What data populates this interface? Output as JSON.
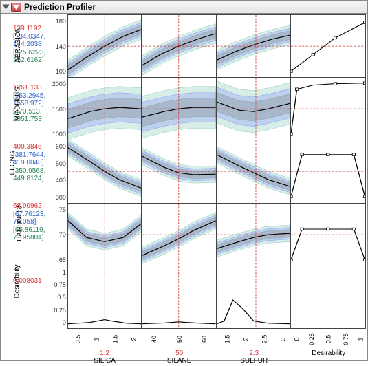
{
  "title": "Prediction Profiler",
  "colors": {
    "red": "#d33333",
    "blue": "#3366cc",
    "green": "#2a8a5a",
    "band_outer": "#5bbba0",
    "band_mid": "#6a7aff",
    "band_inner": "#888888",
    "curve": "#000000",
    "crosshair": "#d33333",
    "grid": "#444444"
  },
  "factors": [
    {
      "name": "SILICA",
      "current": "1.2",
      "ticks": [
        "0.5",
        "1",
        "1.5",
        "2"
      ],
      "domain": [
        0.2,
        1.7
      ]
    },
    {
      "name": "SILANE",
      "current": "50",
      "ticks": [
        "40",
        "50",
        "60"
      ],
      "domain": [
        35,
        65
      ]
    },
    {
      "name": "SULFUR",
      "current": "2.3",
      "ticks": [
        "1.5",
        "2",
        "2.5",
        "3"
      ],
      "domain": [
        1.5,
        3.0
      ]
    },
    {
      "name": "Desirability",
      "current": "",
      "ticks": [
        "0",
        "0.25",
        "0.5",
        "0.75",
        "1"
      ],
      "domain": [
        0,
        1
      ]
    }
  ],
  "responses": [
    {
      "name": "ABRASION",
      "pred": "139.1192",
      "ci": [
        "[134.0347,",
        "144.2038]"
      ],
      "pi": [
        "[125.6223,",
        "152.6162]"
      ],
      "yticks": [
        "100",
        "140",
        "180"
      ],
      "ydomain": [
        90,
        200
      ],
      "curves": [
        {
          "pts": [
            [
              0,
              -0.85
            ],
            [
              0.25,
              -0.4
            ],
            [
              0.5,
              0.0
            ],
            [
              0.75,
              0.35
            ],
            [
              1,
              0.6
            ]
          ],
          "band": 0.35
        },
        {
          "pts": [
            [
              0,
              -0.7
            ],
            [
              0.25,
              -0.3
            ],
            [
              0.5,
              0.0
            ],
            [
              0.75,
              0.25
            ],
            [
              1,
              0.45
            ]
          ],
          "band": 0.35
        },
        {
          "pts": [
            [
              0,
              -0.5
            ],
            [
              0.25,
              -0.2
            ],
            [
              0.5,
              0.05
            ],
            [
              0.75,
              0.25
            ],
            [
              1,
              0.4
            ]
          ],
          "band": 0.35
        }
      ],
      "desir": {
        "pts": [
          [
            0,
            -0.9
          ],
          [
            0.3,
            -0.3
          ],
          [
            0.6,
            0.3
          ],
          [
            1,
            0.85
          ]
        ],
        "markers": [
          0,
          0.3,
          0.6,
          1
        ]
      }
    },
    {
      "name": "MODULUS",
      "pred": "1261.133",
      "ci": [
        "[963.2945,",
        "1558.972]"
      ],
      "pi": [
        "[470.513,",
        "2051.753]"
      ],
      "yticks": [
        "1000",
        "1500",
        "2000"
      ],
      "ydomain": [
        700,
        2200
      ],
      "curves": [
        {
          "pts": [
            [
              0,
              -0.35
            ],
            [
              0.3,
              -0.1
            ],
            [
              0.5,
              0.0
            ],
            [
              0.7,
              0.05
            ],
            [
              1,
              0.0
            ]
          ],
          "band": 0.75
        },
        {
          "pts": [
            [
              0,
              -0.3
            ],
            [
              0.3,
              -0.1
            ],
            [
              0.5,
              0.0
            ],
            [
              0.7,
              0.05
            ],
            [
              1,
              0.05
            ]
          ],
          "band": 0.75
        },
        {
          "pts": [
            [
              0,
              0.25
            ],
            [
              0.3,
              -0.05
            ],
            [
              0.5,
              -0.1
            ],
            [
              0.7,
              0.0
            ],
            [
              1,
              0.2
            ]
          ],
          "band": 0.75
        }
      ],
      "desir": {
        "pts": [
          [
            0,
            -0.9
          ],
          [
            0.08,
            0.7
          ],
          [
            0.3,
            0.85
          ],
          [
            0.6,
            0.9
          ],
          [
            1,
            0.92
          ]
        ],
        "markers": [
          0,
          0.08,
          0.5,
          1
        ]
      }
    },
    {
      "name": "ELONG",
      "pred": "400.3846",
      "ci": [
        "[381.7644,",
        "419.0048]"
      ],
      "pi": [
        "[350.9568,",
        "449.8124]"
      ],
      "yticks": [
        "300",
        "400",
        "500",
        "600"
      ],
      "ydomain": [
        280,
        640
      ],
      "curves": [
        {
          "pts": [
            [
              0,
              0.85
            ],
            [
              0.3,
              0.35
            ],
            [
              0.5,
              0.0
            ],
            [
              0.7,
              -0.3
            ],
            [
              1,
              -0.6
            ]
          ],
          "band": 0.3
        },
        {
          "pts": [
            [
              0,
              0.55
            ],
            [
              0.3,
              0.15
            ],
            [
              0.5,
              -0.05
            ],
            [
              0.7,
              -0.12
            ],
            [
              1,
              -0.1
            ]
          ],
          "band": 0.3
        },
        {
          "pts": [
            [
              0,
              0.6
            ],
            [
              0.3,
              0.2
            ],
            [
              0.5,
              -0.05
            ],
            [
              0.7,
              -0.3
            ],
            [
              1,
              -0.55
            ]
          ],
          "band": 0.3
        }
      ],
      "desir": {
        "pts": [
          [
            0,
            -0.9
          ],
          [
            0.15,
            0.6
          ],
          [
            0.5,
            0.6
          ],
          [
            0.85,
            0.6
          ],
          [
            1,
            -0.9
          ]
        ],
        "markers": [
          0,
          0.15,
          0.5,
          0.85,
          1
        ]
      }
    },
    {
      "name": "HARDNESS",
      "pred": "68.90962",
      "ci": [
        "[67.76123,",
        "70.058]"
      ],
      "pi": [
        "[65.86119,",
        "71.95804]"
      ],
      "yticks": [
        "65",
        "70",
        "75"
      ],
      "ydomain": [
        62,
        78
      ],
      "curves": [
        {
          "pts": [
            [
              0,
              0.5
            ],
            [
              0.25,
              -0.1
            ],
            [
              0.5,
              -0.25
            ],
            [
              0.75,
              -0.1
            ],
            [
              1,
              0.4
            ]
          ],
          "band": 0.3
        },
        {
          "pts": [
            [
              0,
              -0.75
            ],
            [
              0.3,
              -0.4
            ],
            [
              0.5,
              -0.15
            ],
            [
              0.7,
              0.15
            ],
            [
              1,
              0.5
            ]
          ],
          "band": 0.3
        },
        {
          "pts": [
            [
              0,
              -0.5
            ],
            [
              0.3,
              -0.25
            ],
            [
              0.5,
              -0.1
            ],
            [
              0.7,
              0.0
            ],
            [
              1,
              0.05
            ]
          ],
          "band": 0.3
        }
      ],
      "desir": {
        "pts": [
          [
            0,
            -0.9
          ],
          [
            0.15,
            0.2
          ],
          [
            0.5,
            0.2
          ],
          [
            0.85,
            0.2
          ],
          [
            1,
            -0.9
          ]
        ],
        "markers": [
          0,
          0.15,
          0.5,
          0.85,
          1
        ]
      }
    },
    {
      "name": "Desirability",
      "pred": "0.008031",
      "ci": null,
      "pi": null,
      "yticks": [
        "0",
        "0.25",
        "0.5",
        "0.75",
        "1"
      ],
      "ydomain": [
        0,
        1
      ],
      "curves": [
        {
          "pts": [
            [
              0,
              -0.95
            ],
            [
              0.3,
              -0.9
            ],
            [
              0.5,
              -0.8
            ],
            [
              0.6,
              -0.85
            ],
            [
              0.8,
              -0.93
            ],
            [
              1,
              -0.95
            ]
          ],
          "band": 0
        },
        {
          "pts": [
            [
              0,
              -0.95
            ],
            [
              0.3,
              -0.92
            ],
            [
              0.5,
              -0.88
            ],
            [
              0.6,
              -0.9
            ],
            [
              0.8,
              -0.93
            ],
            [
              1,
              -0.95
            ]
          ],
          "band": 0
        },
        {
          "pts": [
            [
              0,
              -0.95
            ],
            [
              0.1,
              -0.85
            ],
            [
              0.22,
              -0.1
            ],
            [
              0.35,
              -0.4
            ],
            [
              0.5,
              -0.85
            ],
            [
              0.7,
              -0.93
            ],
            [
              1,
              -0.95
            ]
          ],
          "band": 0
        }
      ],
      "desir": null
    }
  ],
  "crosshair_x": [
    0.5,
    0.5,
    0.53
  ],
  "font_sizes": {
    "title": 12,
    "labels": 10,
    "ticks": 9
  }
}
